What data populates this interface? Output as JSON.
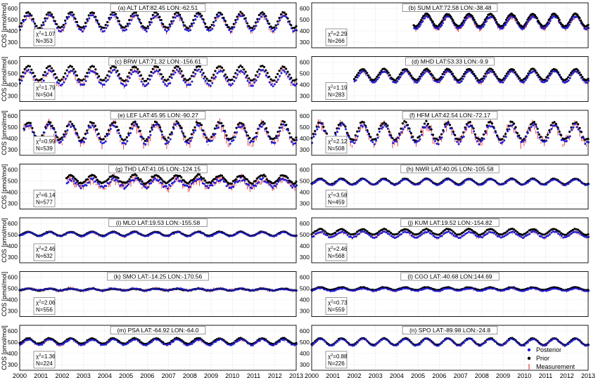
{
  "figure": {
    "ylabel": "COS [pmol/mol]",
    "legend": [
      {
        "label": "Posterior",
        "color": "#1f1fd6",
        "marker": "dot"
      },
      {
        "label": "Prior",
        "color": "#000000",
        "marker": "dot"
      },
      {
        "label": "Measurement",
        "color": "#e01010",
        "marker": "errorbar"
      }
    ],
    "x_ticks": [
      "2000",
      "2001",
      "2002",
      "2003",
      "2004",
      "2005",
      "2006",
      "2007",
      "2008",
      "2009",
      "2010",
      "2011",
      "2012",
      "2013"
    ],
    "y_ticks": [
      "300",
      "400",
      "500",
      "600"
    ],
    "colors": {
      "posterior": "#1f1fd6",
      "prior": "#000000",
      "measurement": "#e01010",
      "grid": "#d9d9d9"
    }
  },
  "chart_data": [
    {
      "type": "scatter",
      "title": "(a) ALT LAT:82.45 LON:-62.51",
      "chi2": "1.07",
      "n": "N=353",
      "start": 2000.0,
      "mean": 470,
      "amp": 70,
      "prior_offset": 25,
      "noise": 18,
      "xlim": [
        2000,
        2013
      ],
      "ylim": [
        250,
        650
      ]
    },
    {
      "type": "scatter",
      "title": "(b) SUM LAT:72.58 LON:-38.48",
      "chi2": "2.29",
      "n": "N=266",
      "start": 2004.8,
      "mean": 475,
      "amp": 55,
      "prior_offset": 20,
      "noise": 15,
      "xlim": [
        2000,
        2013
      ],
      "ylim": [
        250,
        650
      ]
    },
    {
      "type": "scatter",
      "title": "(c) BRW LAT:71.32 LON:-156.61",
      "chi2": "1.79",
      "n": "N=504",
      "start": 2000.0,
      "mean": 460,
      "amp": 65,
      "prior_offset": 40,
      "noise": 20,
      "xlim": [
        2000,
        2013
      ],
      "ylim": [
        250,
        650
      ]
    },
    {
      "type": "scatter",
      "title": "(d) MHD LAT:53.33 LON:-9.9",
      "chi2": "1.19",
      "n": "N=283",
      "start": 2002.0,
      "mean": 470,
      "amp": 50,
      "prior_offset": 20,
      "noise": 12,
      "xlim": [
        2000,
        2013
      ],
      "ylim": [
        250,
        650
      ]
    },
    {
      "type": "scatter",
      "title": "(e) LEF LAT:45.95 LON:-90.27",
      "chi2": "0.99",
      "n": "N=539",
      "start": 2000.2,
      "mean": 440,
      "amp": 80,
      "prior_offset": 25,
      "noise": 35,
      "xlim": [
        2000,
        2013
      ],
      "ylim": [
        250,
        650
      ]
    },
    {
      "type": "scatter",
      "title": "(f) HFM LAT:42.54 LON:-72.17",
      "chi2": "2.12",
      "n": "N=508",
      "start": 2000.0,
      "mean": 440,
      "amp": 80,
      "prior_offset": 25,
      "noise": 35,
      "xlim": [
        2000,
        2013
      ],
      "ylim": [
        250,
        650
      ]
    },
    {
      "type": "scatter",
      "title": "(g) THD LAT:41.05 LON:-124.15",
      "chi2": "6.14",
      "n": "N=577",
      "start": 2002.2,
      "mean": 480,
      "amp": 35,
      "prior_offset": 35,
      "noise": 30,
      "xlim": [
        2000,
        2013
      ],
      "ylim": [
        250,
        650
      ]
    },
    {
      "type": "scatter",
      "title": "(h) NWR LAT:40.05 LON:-105.58",
      "chi2": "3.58",
      "n": "N=459",
      "start": 2000.0,
      "mean": 490,
      "amp": 25,
      "prior_offset": 5,
      "noise": 8,
      "xlim": [
        2000,
        2013
      ],
      "ylim": [
        250,
        650
      ]
    },
    {
      "type": "scatter",
      "title": "(i) MLO LAT:19.53 LON:-155.58",
      "chi2": "2.46",
      "n": "N=632",
      "start": 2000.0,
      "mean": 505,
      "amp": 18,
      "prior_offset": 3,
      "noise": 8,
      "xlim": [
        2000,
        2013
      ],
      "ylim": [
        250,
        650
      ]
    },
    {
      "type": "scatter",
      "title": "(j) KUM LAT:19.52 LON:-154.82",
      "chi2": "2.46",
      "n": "N=568",
      "start": 2000.0,
      "mean": 500,
      "amp": 25,
      "prior_offset": 25,
      "noise": 10,
      "xlim": [
        2000,
        2013
      ],
      "ylim": [
        250,
        650
      ]
    },
    {
      "type": "scatter",
      "title": "(k) SMO LAT:-14.25 LON:-170.56",
      "chi2": "2.06",
      "n": "N=556",
      "start": 2000.0,
      "mean": 490,
      "amp": 8,
      "prior_offset": 0,
      "noise": 10,
      "xlim": [
        2000,
        2013
      ],
      "ylim": [
        250,
        650
      ]
    },
    {
      "type": "scatter",
      "title": "(l) CGO LAT:-40.68 LON:144.69",
      "chi2": "0.73",
      "n": "N=559",
      "start": 2000.0,
      "mean": 490,
      "amp": 12,
      "prior_offset": 8,
      "noise": 8,
      "xlim": [
        2000,
        2013
      ],
      "ylim": [
        250,
        650
      ]
    },
    {
      "type": "scatter",
      "title": "(m) PSA LAT:-64.92 LON:-64.0",
      "chi2": "1.36",
      "n": "N=224",
      "start": 2000.0,
      "mean": 500,
      "amp": 25,
      "prior_offset": 10,
      "noise": 10,
      "xlim": [
        2000,
        2013
      ],
      "ylim": [
        250,
        650
      ]
    },
    {
      "type": "scatter",
      "title": "(n) SPO LAT:-89.98 LON:-24.8",
      "chi2": "0.88",
      "n": "N=226",
      "start": 2000.0,
      "mean": 500,
      "amp": 30,
      "prior_offset": 5,
      "noise": 8,
      "xlim": [
        2000,
        2013
      ],
      "ylim": [
        250,
        650
      ]
    }
  ]
}
